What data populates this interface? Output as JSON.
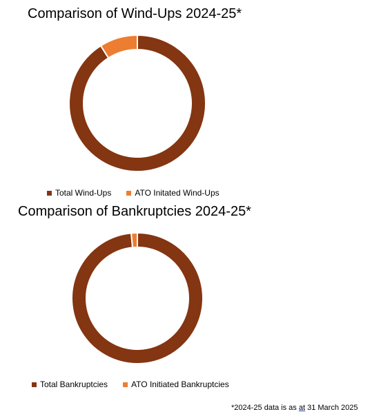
{
  "colors": {
    "total": "#843511",
    "ato": "#ed7d31",
    "separator": "#ffffff"
  },
  "chart_data": [
    {
      "type": "pie",
      "title": "Comparison of Wind-Ups 2024-25*",
      "legend_position": "bottom",
      "categories": [
        "Total Wind-Ups",
        "ATO Initated Wind-Ups"
      ],
      "values": [
        91,
        9
      ]
    },
    {
      "type": "pie",
      "title": "Comparison of Bankruptcies 2024-25*",
      "legend_position": "bottom",
      "categories": [
        "Total Bankruptcies",
        "ATO Initiated Bankruptcies"
      ],
      "values": [
        98.5,
        1.5
      ]
    }
  ],
  "footnote": {
    "prefix": "*2024-25 data is as ",
    "link": "at",
    "suffix": " 31 March 2025"
  }
}
